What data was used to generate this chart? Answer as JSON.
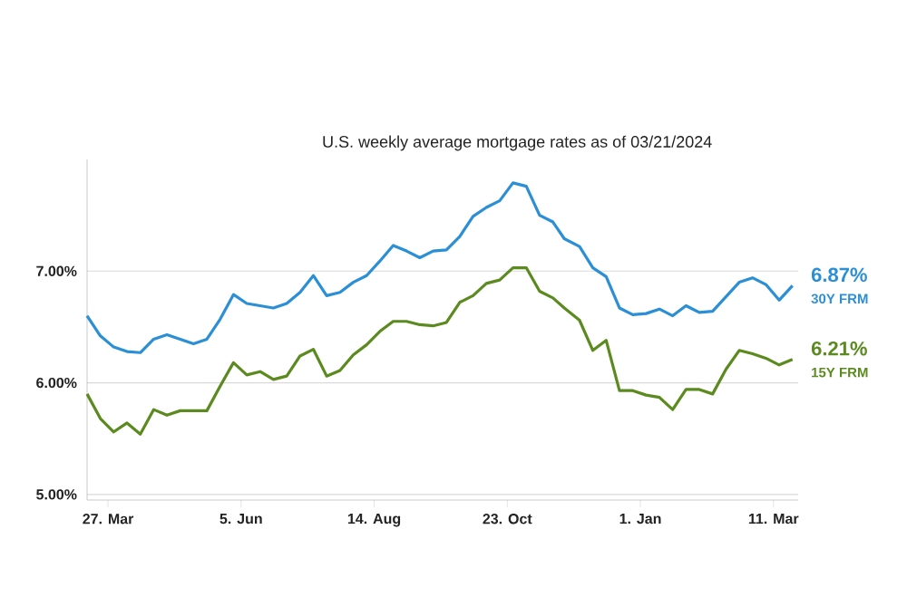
{
  "chart_data": {
    "type": "line",
    "subtitle": "U.S. weekly average mortgage rates as of 03/21/2024",
    "x": [
      "2023-03-16",
      "2023-03-23",
      "2023-03-30",
      "2023-04-06",
      "2023-04-13",
      "2023-04-20",
      "2023-04-27",
      "2023-05-04",
      "2023-05-11",
      "2023-05-18",
      "2023-05-25",
      "2023-06-01",
      "2023-06-08",
      "2023-06-15",
      "2023-06-22",
      "2023-06-29",
      "2023-07-06",
      "2023-07-13",
      "2023-07-20",
      "2023-07-27",
      "2023-08-03",
      "2023-08-10",
      "2023-08-17",
      "2023-08-24",
      "2023-08-31",
      "2023-09-07",
      "2023-09-14",
      "2023-09-21",
      "2023-09-28",
      "2023-10-05",
      "2023-10-12",
      "2023-10-19",
      "2023-10-26",
      "2023-11-02",
      "2023-11-09",
      "2023-11-16",
      "2023-11-22",
      "2023-11-30",
      "2023-12-07",
      "2023-12-14",
      "2023-12-21",
      "2023-12-28",
      "2024-01-04",
      "2024-01-11",
      "2024-01-18",
      "2024-01-25",
      "2024-02-01",
      "2024-02-08",
      "2024-02-15",
      "2024-02-22",
      "2024-02-29",
      "2024-03-07",
      "2024-03-14",
      "2024-03-21"
    ],
    "series": [
      {
        "name": "30Y FRM",
        "color": "#2b8fd6",
        "values": [
          6.6,
          6.42,
          6.32,
          6.28,
          6.27,
          6.39,
          6.43,
          6.39,
          6.35,
          6.39,
          6.57,
          6.79,
          6.71,
          6.69,
          6.67,
          6.71,
          6.81,
          6.96,
          6.78,
          6.81,
          6.9,
          6.96,
          7.09,
          7.23,
          7.18,
          7.12,
          7.18,
          7.19,
          7.31,
          7.49,
          7.57,
          7.63,
          7.79,
          7.76,
          7.5,
          7.44,
          7.29,
          7.22,
          7.03,
          6.95,
          6.67,
          6.61,
          6.62,
          6.66,
          6.6,
          6.69,
          6.63,
          6.64,
          6.77,
          6.9,
          6.94,
          6.88,
          6.74,
          6.87
        ],
        "value_labels": [
          null,
          null,
          null,
          null,
          null,
          null,
          null,
          null,
          null,
          null,
          null,
          null,
          null,
          null,
          null,
          null,
          null,
          null,
          null,
          null,
          null,
          null,
          null,
          null,
          null,
          null,
          null,
          null,
          null,
          null,
          null,
          null,
          null,
          null,
          null,
          null,
          null,
          null,
          null,
          null,
          null,
          null,
          null,
          null,
          null,
          null,
          null,
          null,
          null,
          null,
          null,
          null,
          null,
          "6.87%"
        ]
      },
      {
        "name": "15Y FRM",
        "color": "#5b8a1f",
        "values": [
          5.9,
          5.68,
          5.56,
          5.64,
          5.54,
          5.76,
          5.71,
          5.75,
          5.75,
          5.75,
          5.97,
          6.18,
          6.07,
          6.1,
          6.03,
          6.06,
          6.24,
          6.3,
          6.06,
          6.11,
          6.25,
          6.34,
          6.46,
          6.55,
          6.55,
          6.52,
          6.51,
          6.54,
          6.72,
          6.78,
          6.89,
          6.92,
          7.03,
          7.03,
          6.82,
          6.76,
          6.67,
          6.56,
          6.29,
          6.38,
          5.93,
          5.93,
          5.89,
          5.87,
          5.76,
          5.94,
          5.94,
          5.9,
          6.12,
          6.29,
          6.26,
          6.22,
          6.16,
          6.21
        ],
        "value_labels": [
          null,
          null,
          null,
          null,
          null,
          null,
          null,
          null,
          null,
          null,
          null,
          null,
          null,
          null,
          null,
          null,
          null,
          null,
          null,
          null,
          null,
          null,
          null,
          null,
          null,
          null,
          null,
          null,
          null,
          null,
          null,
          null,
          null,
          null,
          null,
          null,
          null,
          null,
          null,
          null,
          null,
          null,
          null,
          null,
          null,
          null,
          null,
          null,
          null,
          null,
          null,
          null,
          null,
          "6.21%"
        ]
      }
    ],
    "xlim": [
      "2023-03-16",
      "2024-03-24"
    ],
    "xticks": [
      {
        "value": "2023-03-27",
        "label": "27. Mar"
      },
      {
        "value": "2023-06-05",
        "label": "5. Jun"
      },
      {
        "value": "2023-08-14",
        "label": "14. Aug"
      },
      {
        "value": "2023-10-23",
        "label": "23. Oct"
      },
      {
        "value": "2024-01-01",
        "label": "1. Jan"
      },
      {
        "value": "2024-03-11",
        "label": "11. Mar"
      }
    ],
    "ylim": [
      4.95,
      8.0
    ],
    "yticks": [
      {
        "value": 5,
        "label": "5.00%"
      },
      {
        "value": 6,
        "label": "6.00%"
      },
      {
        "value": 7,
        "label": "7.00%"
      }
    ],
    "grid": "y",
    "marker": "none",
    "line_style": "solid"
  }
}
